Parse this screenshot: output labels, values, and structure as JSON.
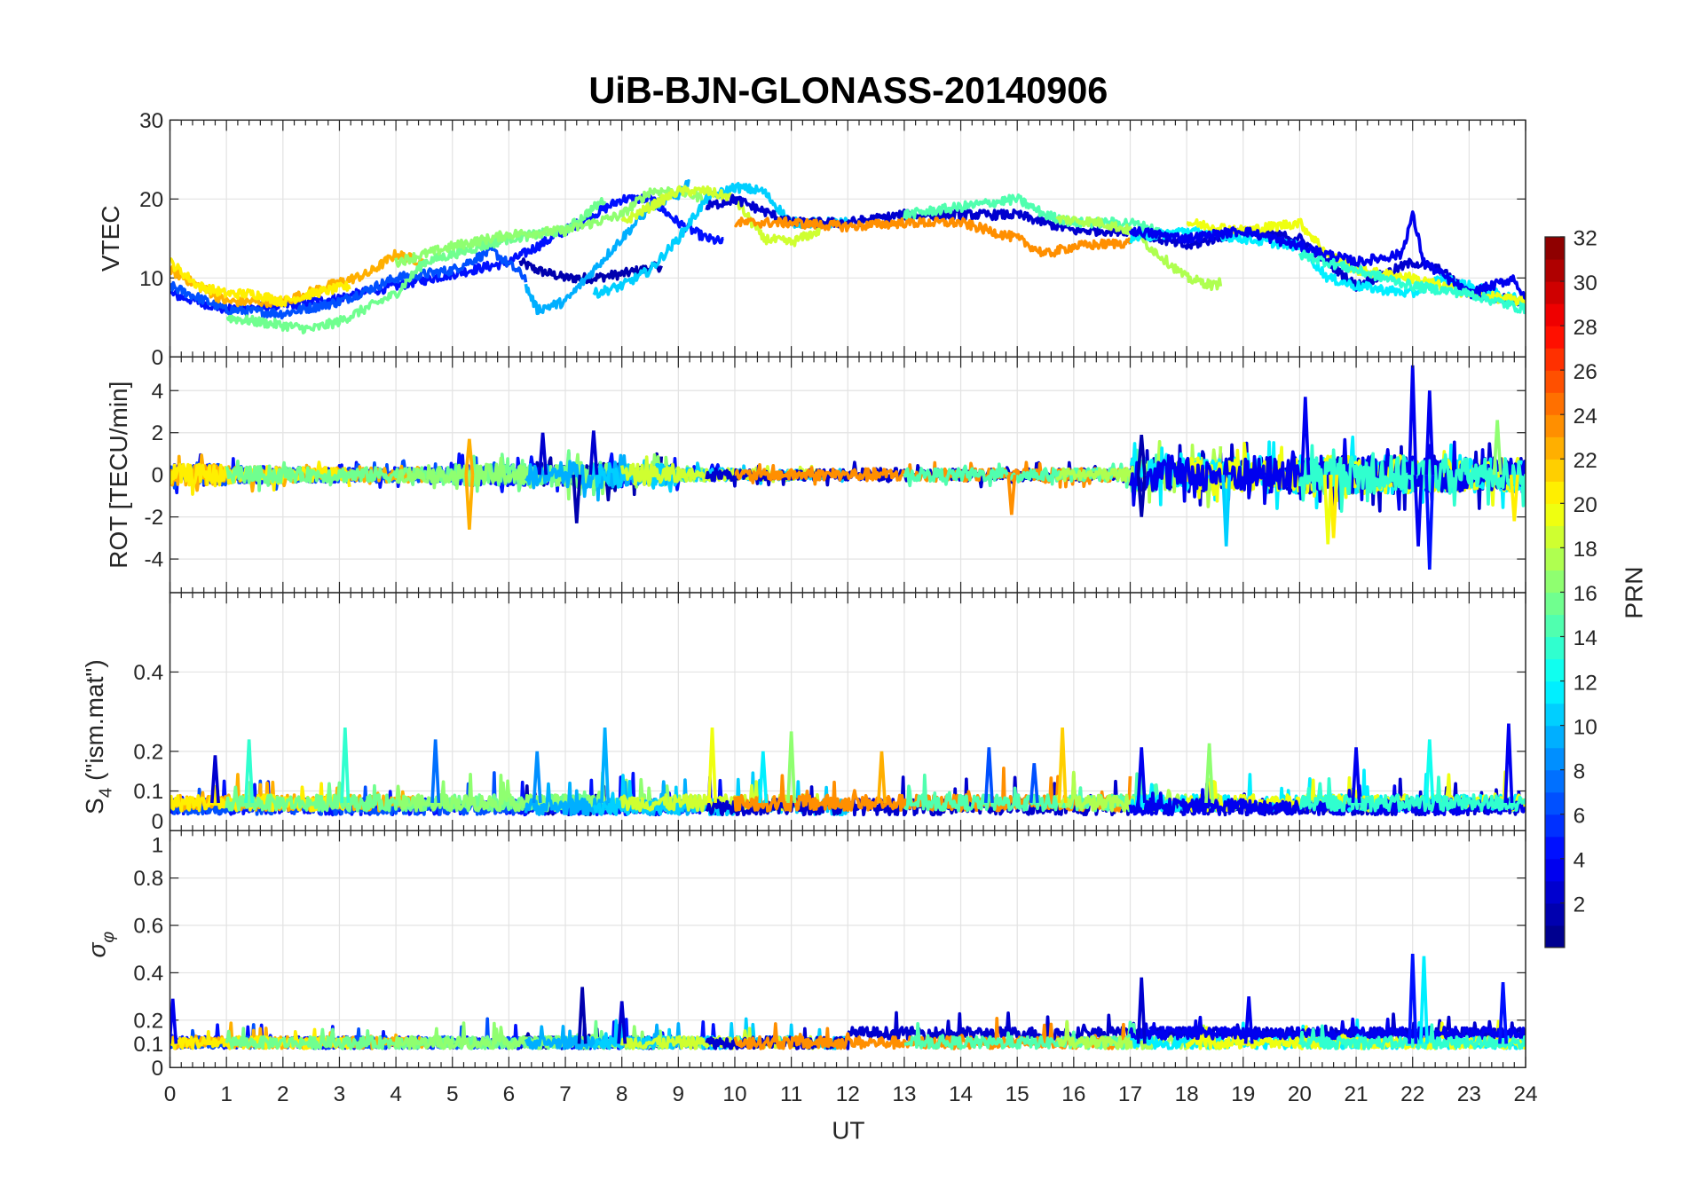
{
  "chart_data": {
    "type": "line",
    "title": "UiB-BJN-GLONASS-20140906",
    "xlabel": "UT",
    "xlim": [
      0,
      24
    ],
    "xticks": [
      "0",
      "1",
      "2",
      "3",
      "4",
      "5",
      "6",
      "7",
      "8",
      "9",
      "10",
      "11",
      "12",
      "13",
      "14",
      "15",
      "16",
      "17",
      "18",
      "19",
      "20",
      "21",
      "22",
      "23",
      "24"
    ],
    "grid": true,
    "colorbar": {
      "label": "PRN",
      "range": [
        1,
        32
      ],
      "levels": 32,
      "colormap": "jet",
      "ticks": [
        "2",
        "4",
        "6",
        "8",
        "10",
        "12",
        "14",
        "16",
        "18",
        "20",
        "22",
        "24",
        "26",
        "28",
        "30",
        "32"
      ],
      "placement": "right"
    },
    "panels": [
      {
        "id": "vtec",
        "ylabel": "VTEC",
        "ylim": [
          0,
          30
        ],
        "yticks": [
          0,
          10,
          20,
          30
        ],
        "ytick_labels": [
          "0",
          "10",
          "20",
          "30"
        ]
      },
      {
        "id": "rot",
        "ylabel": "ROT [TECU/min]",
        "ylim": [
          -5.6,
          5.6
        ],
        "yticks": [
          -4,
          -2,
          0,
          2,
          4
        ],
        "ytick_labels": [
          "-4",
          "-2",
          "0",
          "2",
          "4"
        ],
        "baseline_amplitude_by_hour": [
          0.5,
          0.4,
          0.35,
          0.35,
          0.35,
          0.5,
          0.5,
          0.6,
          0.5,
          0.3,
          0.25,
          0.25,
          0.3,
          0.3,
          0.3,
          0.3,
          0.3,
          0.8,
          0.8,
          0.9,
          0.9,
          0.9,
          0.8,
          0.8,
          0.8
        ],
        "spikes": [
          [
            5.3,
            -2.6,
            23
          ],
          [
            5.3,
            1.7,
            23
          ],
          [
            7.2,
            -2.3,
            2
          ],
          [
            7.5,
            2.1,
            3
          ],
          [
            6.6,
            2.0,
            3
          ],
          [
            14.9,
            -1.9,
            24
          ],
          [
            17.2,
            1.9,
            2
          ],
          [
            17.2,
            -2.0,
            2
          ],
          [
            18.7,
            -3.4,
            11
          ],
          [
            20.1,
            3.7,
            4
          ],
          [
            20.5,
            -3.3,
            20
          ],
          [
            20.6,
            -3.0,
            21
          ],
          [
            22.0,
            5.2,
            4
          ],
          [
            22.1,
            -3.4,
            4
          ],
          [
            22.3,
            -4.5,
            5
          ],
          [
            22.3,
            4.0,
            4
          ],
          [
            23.5,
            2.6,
            17
          ],
          [
            23.8,
            -2.2,
            21
          ]
        ]
      },
      {
        "id": "s4",
        "ylabel_main": "S",
        "ylabel_sub": "4",
        "ylabel_rest": " (\"ism.mat\")",
        "ylim": [
          0,
          0.6
        ],
        "yticks": [
          0,
          0.1,
          0.2,
          0.4
        ],
        "ytick_labels": [
          "0",
          "0.1",
          "0.2",
          "0.4"
        ],
        "baseline": 0.07,
        "spikes": [
          [
            0.8,
            0.19,
            3
          ],
          [
            1.4,
            0.23,
            14
          ],
          [
            3.1,
            0.26,
            14
          ],
          [
            4.7,
            0.23,
            8
          ],
          [
            6.5,
            0.2,
            9
          ],
          [
            7.7,
            0.26,
            10
          ],
          [
            9.6,
            0.26,
            20
          ],
          [
            10.5,
            0.2,
            12
          ],
          [
            11.0,
            0.25,
            17
          ],
          [
            12.6,
            0.2,
            23
          ],
          [
            14.5,
            0.21,
            7
          ],
          [
            15.3,
            0.17,
            7
          ],
          [
            15.8,
            0.26,
            22
          ],
          [
            17.2,
            0.21,
            4
          ],
          [
            18.4,
            0.22,
            17
          ],
          [
            21.0,
            0.21,
            4
          ],
          [
            22.3,
            0.23,
            13
          ],
          [
            23.7,
            0.27,
            4
          ]
        ]
      },
      {
        "id": "sigma",
        "ylabel": "σ",
        "ylabel_sub": "φ",
        "ylim": [
          0,
          1
        ],
        "yticks": [
          0,
          0.1,
          0.2,
          0.4,
          0.6,
          0.8,
          1
        ],
        "ytick_labels": [
          "0",
          "0.1",
          "0.2",
          "0.4",
          "0.6",
          "0.8",
          "1"
        ],
        "baseline": 0.1,
        "spikes": [
          [
            0.05,
            0.29,
            4
          ],
          [
            7.3,
            0.34,
            2
          ],
          [
            8.0,
            0.28,
            3
          ],
          [
            17.2,
            0.38,
            3
          ],
          [
            19.1,
            0.3,
            4
          ],
          [
            22.0,
            0.48,
            5
          ],
          [
            22.2,
            0.47,
            12
          ],
          [
            23.6,
            0.36,
            5
          ]
        ]
      }
    ],
    "series": [
      {
        "prn": 2,
        "vtec": [
          [
            6.2,
            12
          ],
          [
            6.5,
            11
          ],
          [
            7,
            10
          ],
          [
            7.5,
            10
          ],
          [
            8,
            10.5
          ],
          [
            8.7,
            11.5
          ]
        ]
      },
      {
        "prn": 5,
        "vtec": [
          [
            0,
            8
          ],
          [
            1,
            6
          ],
          [
            2,
            6.5
          ],
          [
            3,
            7.5
          ],
          [
            4,
            9
          ],
          [
            5,
            10.5
          ],
          [
            6,
            12
          ],
          [
            6.5,
            14
          ],
          [
            7,
            16
          ],
          [
            7.5,
            18
          ],
          [
            8,
            20
          ],
          [
            8.5,
            20
          ],
          [
            9,
            17
          ],
          [
            9.5,
            15
          ],
          [
            9.8,
            14.5
          ]
        ]
      },
      {
        "prn": 7,
        "vtec": [
          [
            0,
            9
          ],
          [
            1,
            6
          ],
          [
            2,
            5.5
          ],
          [
            3,
            7
          ],
          [
            4,
            10
          ],
          [
            5,
            11
          ],
          [
            5.7,
            13.5
          ],
          [
            6.3,
            10
          ]
        ]
      },
      {
        "prn": 23,
        "vtec": [
          [
            0,
            11
          ],
          [
            1,
            7
          ],
          [
            2,
            7
          ],
          [
            2.8,
            9
          ],
          [
            3.5,
            10.5
          ],
          [
            4,
            13
          ],
          [
            4.5,
            12
          ]
        ]
      },
      {
        "prn": 21,
        "vtec": [
          [
            0,
            12
          ],
          [
            0.5,
            9
          ],
          [
            1,
            8
          ],
          [
            1.5,
            8
          ],
          [
            2,
            7
          ],
          [
            2.5,
            8
          ],
          [
            3.2,
            9
          ]
        ]
      },
      {
        "prn": 16,
        "vtec": [
          [
            1,
            5
          ],
          [
            2,
            4
          ],
          [
            2.5,
            3.5
          ],
          [
            3,
            4.5
          ],
          [
            4,
            8
          ],
          [
            4.5,
            12
          ],
          [
            5,
            13
          ],
          [
            6,
            15
          ],
          [
            7,
            16
          ],
          [
            7.7,
            20
          ]
        ]
      },
      {
        "prn": 17,
        "vtec": [
          [
            4,
            12
          ],
          [
            5,
            14
          ],
          [
            6,
            15.5
          ],
          [
            7,
            16
          ],
          [
            8,
            18
          ],
          [
            8.5,
            21
          ],
          [
            9,
            21
          ],
          [
            9.5,
            20
          ]
        ]
      },
      {
        "prn": 10,
        "vtec": [
          [
            6.3,
            9
          ],
          [
            6.5,
            6
          ],
          [
            7,
            7
          ],
          [
            7.5,
            11
          ],
          [
            8,
            15
          ],
          [
            8.5,
            19
          ],
          [
            9,
            20.5
          ],
          [
            9.2,
            22.5
          ]
        ]
      },
      {
        "prn": 11,
        "vtec": [
          [
            7.5,
            8
          ],
          [
            8,
            9
          ],
          [
            8.5,
            11
          ],
          [
            9,
            15
          ],
          [
            9.5,
            20
          ],
          [
            10,
            21.5
          ],
          [
            10.5,
            21
          ],
          [
            11,
            17
          ],
          [
            12,
            17
          ]
        ]
      },
      {
        "prn": 19,
        "vtec": [
          [
            8,
            17
          ],
          [
            8.5,
            19
          ],
          [
            9,
            21
          ],
          [
            9.5,
            21
          ],
          [
            10,
            20
          ],
          [
            10.5,
            15
          ],
          [
            11,
            14.5
          ],
          [
            11.5,
            16
          ]
        ]
      },
      {
        "prn": 3,
        "vtec": [
          [
            9.5,
            19
          ],
          [
            10,
            20
          ],
          [
            11,
            17
          ],
          [
            12,
            17
          ],
          [
            13,
            18
          ],
          [
            14,
            18
          ],
          [
            15,
            18
          ],
          [
            16,
            16
          ],
          [
            17,
            16
          ],
          [
            18,
            14
          ],
          [
            19,
            16
          ],
          [
            20,
            15
          ],
          [
            20.5,
            12
          ],
          [
            21,
            9
          ],
          [
            22,
            12
          ],
          [
            22.5,
            11
          ],
          [
            23,
            8
          ],
          [
            24,
            7
          ]
        ]
      },
      {
        "prn": 24,
        "vtec": [
          [
            10,
            17
          ],
          [
            11,
            17
          ],
          [
            12,
            16.5
          ],
          [
            13,
            17
          ],
          [
            14,
            17
          ],
          [
            14.5,
            16
          ],
          [
            15,
            15
          ],
          [
            15.5,
            13
          ],
          [
            16,
            14
          ],
          [
            17,
            14.5
          ]
        ]
      },
      {
        "prn": 15,
        "vtec": [
          [
            13,
            18
          ],
          [
            14,
            19
          ],
          [
            15,
            20
          ],
          [
            15.5,
            18
          ],
          [
            16,
            17
          ],
          [
            17,
            17
          ],
          [
            17.5,
            16
          ]
        ]
      },
      {
        "prn": 18,
        "vtec": [
          [
            15.7,
            17.5
          ],
          [
            16.5,
            17
          ],
          [
            17,
            16
          ],
          [
            17.5,
            13
          ],
          [
            18,
            10
          ],
          [
            18.5,
            9
          ],
          [
            18.6,
            9.5
          ]
        ]
      },
      {
        "prn": 12,
        "vtec": [
          [
            17,
            15
          ],
          [
            18,
            16
          ],
          [
            19,
            15
          ],
          [
            20,
            14
          ],
          [
            20.5,
            10
          ],
          [
            21,
            9
          ],
          [
            22,
            8
          ],
          [
            22.5,
            10
          ],
          [
            23,
            9
          ],
          [
            24,
            7
          ]
        ]
      },
      {
        "prn": 20,
        "vtec": [
          [
            18,
            17
          ],
          [
            19,
            16
          ],
          [
            20,
            17
          ],
          [
            20.5,
            13
          ],
          [
            21,
            11
          ],
          [
            22,
            10
          ],
          [
            23,
            8
          ],
          [
            24,
            7
          ]
        ]
      },
      {
        "prn": 4,
        "vtec": [
          [
            17,
            16
          ],
          [
            18,
            15
          ],
          [
            19,
            16
          ],
          [
            20,
            14
          ],
          [
            21,
            12
          ],
          [
            21.8,
            13
          ],
          [
            22,
            18
          ],
          [
            22.2,
            12
          ],
          [
            23,
            8
          ],
          [
            23.8,
            10
          ],
          [
            24,
            7
          ]
        ]
      },
      {
        "prn": 14,
        "vtec": [
          [
            20,
            13
          ],
          [
            21,
            11
          ],
          [
            22,
            9
          ],
          [
            23,
            8
          ],
          [
            24,
            6
          ]
        ]
      }
    ]
  }
}
